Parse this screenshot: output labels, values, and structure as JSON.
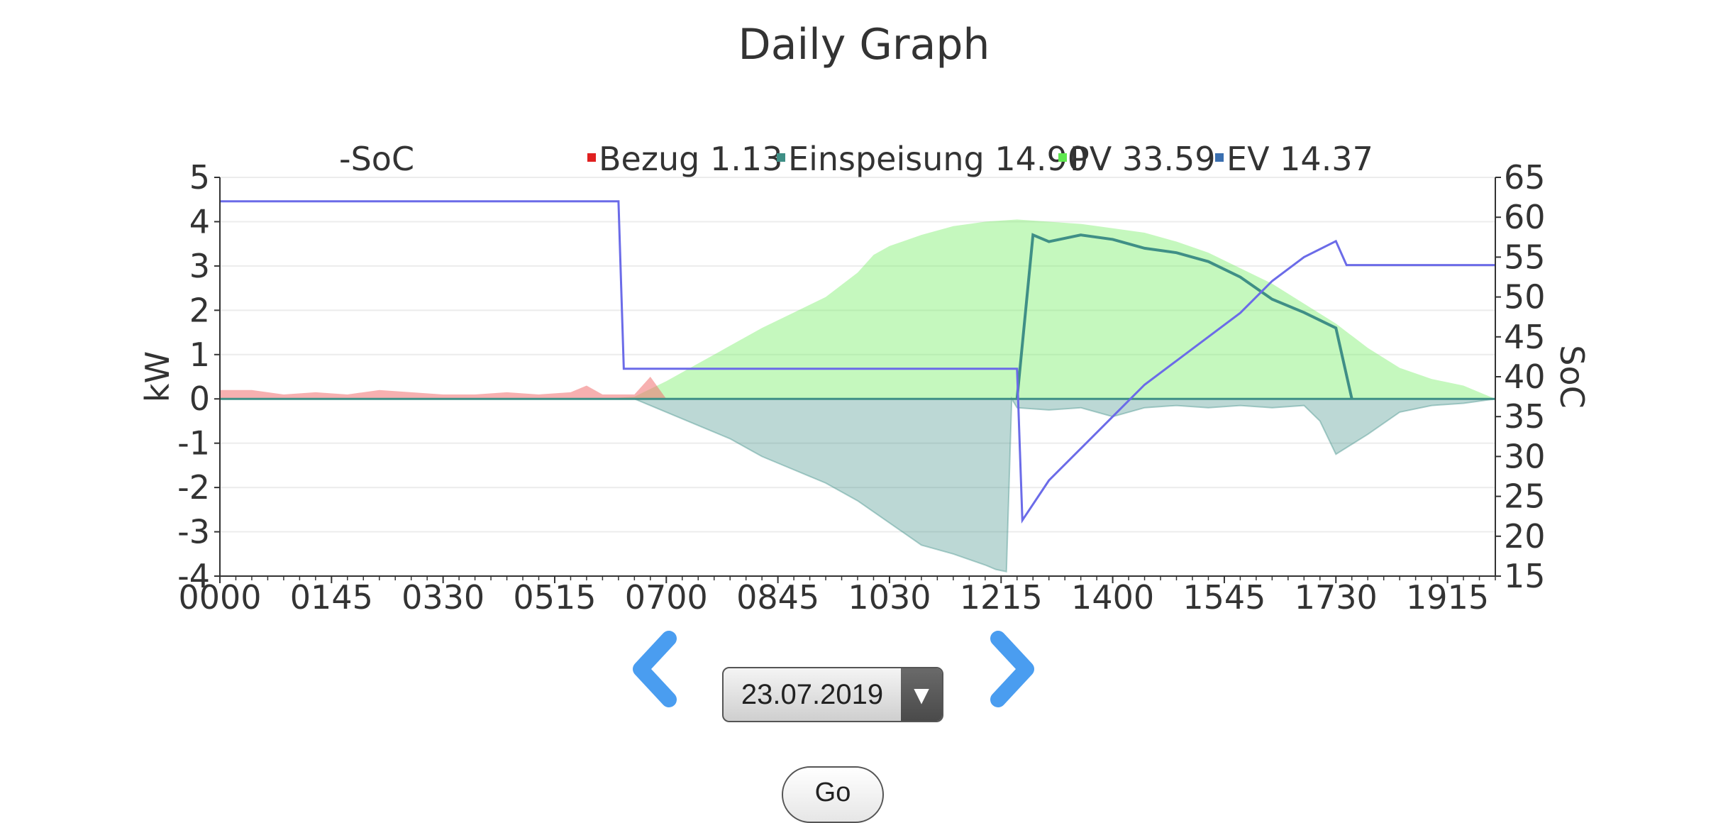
{
  "page": {
    "title": "Daily Graph"
  },
  "controls": {
    "date_value": "23.07.2019",
    "go_label": "Go",
    "prev_icon": "chevron-left-icon",
    "next_icon": "chevron-right-icon",
    "dropdown_icon": "triangle-down-icon"
  },
  "colors": {
    "soc": "#6b6be8",
    "bezug": "#f07070",
    "einspeisung": "#3f8f86",
    "pv": "#7fef6f",
    "ev": "#3a6fb0",
    "nav": "#4a9df0"
  },
  "chart_data": {
    "type": "area",
    "x_unit": "time of day (hhmm)",
    "x_ticks": [
      "0000",
      "0145",
      "0330",
      "0515",
      "0700",
      "0845",
      "1030",
      "1215",
      "1400",
      "1545",
      "1730",
      "1915"
    ],
    "xlim": [
      "0000",
      "2000"
    ],
    "ylabel": "kW",
    "ylim": [
      -4,
      5
    ],
    "y_ticks": [
      -4,
      -3,
      -2,
      -1,
      0,
      1,
      2,
      3,
      4,
      5
    ],
    "y2label": "SoC",
    "y2lim": [
      15,
      65
    ],
    "y2_ticks": [
      15,
      20,
      25,
      30,
      35,
      40,
      45,
      50,
      55,
      60,
      65
    ],
    "grid": true,
    "legend_position": "top",
    "legend": [
      {
        "label": "-SoC",
        "key": "soc"
      },
      {
        "label": "Bezug 1.13",
        "key": "bezug"
      },
      {
        "label": "Einspeisung 14.90",
        "key": "einspeisung"
      },
      {
        "label": "PV 33.59",
        "key": "pv"
      },
      {
        "label": "EV 14.37",
        "key": "ev"
      }
    ],
    "series": [
      {
        "name": "PV",
        "key": "pv",
        "axis": "left",
        "x": [
          "0600",
          "0630",
          "0700",
          "0730",
          "0800",
          "0830",
          "0900",
          "0930",
          "1000",
          "1015",
          "1030",
          "1100",
          "1130",
          "1200",
          "1230",
          "1300",
          "1330",
          "1400",
          "1430",
          "1500",
          "1530",
          "1600",
          "1630",
          "1700",
          "1730",
          "1800",
          "1830",
          "1900",
          "1930",
          "2000"
        ],
        "values": [
          0,
          0.05,
          0.4,
          0.8,
          1.2,
          1.6,
          1.95,
          2.3,
          2.85,
          3.25,
          3.45,
          3.7,
          3.9,
          4.0,
          4.05,
          4.0,
          3.95,
          3.85,
          3.75,
          3.55,
          3.3,
          2.95,
          2.6,
          2.15,
          1.7,
          1.15,
          0.7,
          0.45,
          0.3,
          0
        ]
      },
      {
        "name": "Einspeisung",
        "key": "einspeisung",
        "axis": "left",
        "x": [
          "0630",
          "0700",
          "0730",
          "0800",
          "0830",
          "0900",
          "0930",
          "1000",
          "1030",
          "1100",
          "1130",
          "1200",
          "1210",
          "1220",
          "1225",
          "1230",
          "1300",
          "1330",
          "1400",
          "1430",
          "1500",
          "1530",
          "1600",
          "1630",
          "1700",
          "1715",
          "1730",
          "1800",
          "1830",
          "1900",
          "1930",
          "2000"
        ],
        "values": [
          0,
          -0.3,
          -0.6,
          -0.9,
          -1.3,
          -1.6,
          -1.9,
          -2.3,
          -2.8,
          -3.3,
          -3.5,
          -3.75,
          -3.85,
          -3.9,
          0,
          -0.2,
          -0.25,
          -0.2,
          -0.4,
          -0.2,
          -0.15,
          -0.2,
          -0.15,
          -0.2,
          -0.15,
          -0.5,
          -1.25,
          -0.8,
          -0.3,
          -0.15,
          -0.1,
          0
        ]
      },
      {
        "name": "Bezug",
        "key": "bezug",
        "axis": "left",
        "x": [
          "0000",
          "0030",
          "0100",
          "0130",
          "0200",
          "0230",
          "0300",
          "0330",
          "0400",
          "0430",
          "0500",
          "0530",
          "0545",
          "0600",
          "0630",
          "0645",
          "0700"
        ],
        "values": [
          0.2,
          0.2,
          0.1,
          0.15,
          0.1,
          0.2,
          0.15,
          0.1,
          0.1,
          0.15,
          0.1,
          0.15,
          0.3,
          0.1,
          0.1,
          0.5,
          0
        ]
      },
      {
        "name": "EV",
        "key": "ev",
        "axis": "left",
        "x": [
          "1230",
          "1245",
          "1300",
          "1330",
          "1400",
          "1430",
          "1500",
          "1530",
          "1600",
          "1630",
          "1700",
          "1730",
          "1745"
        ],
        "values": [
          0,
          3.7,
          3.55,
          3.7,
          3.6,
          3.4,
          3.3,
          3.1,
          2.75,
          2.25,
          1.95,
          1.6,
          0
        ]
      },
      {
        "name": "SoC",
        "key": "soc",
        "axis": "right",
        "x": [
          "0000",
          "0615",
          "0620",
          "1230",
          "1235",
          "1240",
          "1300",
          "1330",
          "1400",
          "1430",
          "1500",
          "1530",
          "1600",
          "1630",
          "1700",
          "1730",
          "1740",
          "1745",
          "2000"
        ],
        "values": [
          62,
          62,
          41,
          41,
          22,
          23,
          27,
          31,
          35,
          39,
          42,
          45,
          48,
          52,
          55,
          57,
          54,
          54,
          54
        ]
      }
    ]
  }
}
